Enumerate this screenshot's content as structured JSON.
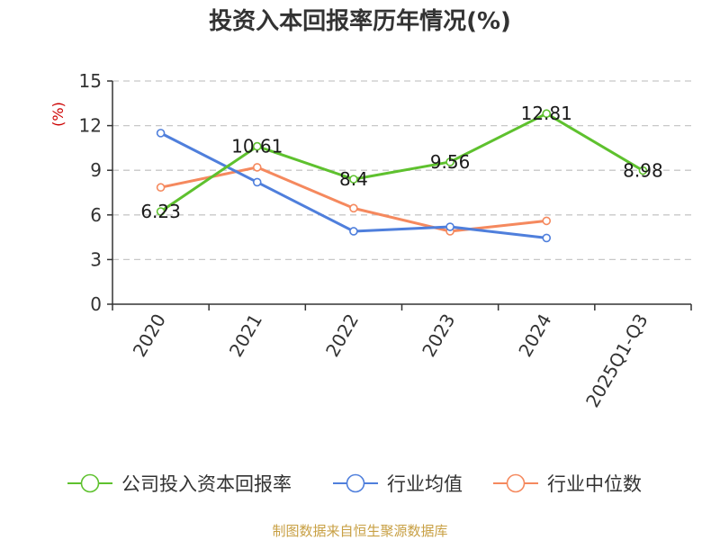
{
  "chart_data": {
    "type": "line",
    "title": "投资入本回报率历年情况(%)",
    "ylabel": "(%)",
    "xlabel": "",
    "ylim": [
      0,
      15
    ],
    "yticks": [
      0,
      3,
      6,
      9,
      12,
      15
    ],
    "grid": true,
    "categories": [
      "2020",
      "2021",
      "2022",
      "2023",
      "2024",
      "2025Q1-Q3"
    ],
    "series": [
      {
        "name": "公司投入资本回报率",
        "color": "#5ec12e",
        "values": [
          6.23,
          10.61,
          8.4,
          9.56,
          12.81,
          8.98
        ],
        "labels": true
      },
      {
        "name": "行业均值",
        "color": "#4f7fdc",
        "values": [
          11.5,
          8.2,
          4.9,
          5.2,
          4.45,
          null
        ],
        "labels": false
      },
      {
        "name": "行业中位数",
        "color": "#f5895e",
        "values": [
          7.85,
          9.2,
          6.45,
          4.9,
          5.6,
          null
        ],
        "labels": false
      }
    ],
    "legend_position": "bottom"
  },
  "source_text": "制图数据来自恒生聚源数据库"
}
